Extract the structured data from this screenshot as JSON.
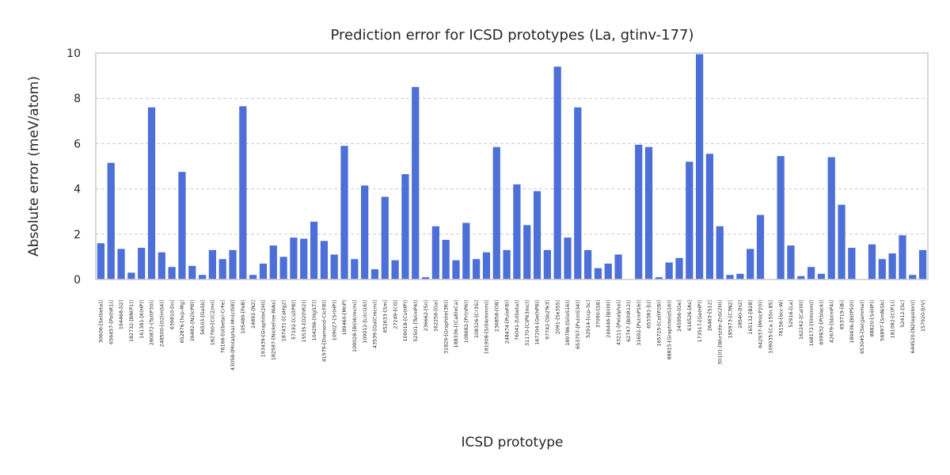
{
  "chart_data": {
    "type": "bar",
    "title": "Prediction error for ICSD prototypes (La, gtinv-177)",
    "xlabel": "ICSD prototype",
    "ylabel": "Absolute error (meV/atom)",
    "ylim": [
      0,
      10
    ],
    "yticks": [
      0,
      2,
      4,
      6,
      8,
      10
    ],
    "grid": "y-dashed",
    "color": "#4c6fd8",
    "categories": [
      "30606-[Se(beta)]",
      "656457-[Po(hR1)]",
      "194468-[I2]",
      "182732-[BN(P1)]",
      "161381-[K(HP)]",
      "280872-[Ta(tP30)]",
      "248500-[O2(mS4)]",
      "639810-[In]",
      "652876-[hcp-Mg]",
      "26482-[N2(cP8)]",
      "56503-[GaSb]",
      "182760-[C(C2/m)]",
      "76166-[U(beta)-CrFe]",
      "43058-[Mn(alpha)-Mn(cI58)]",
      "105489-[FeB]",
      "24892-[N2]",
      "193439-[Graphite(2H)]",
      "182587-[Nickeline-NiAs]",
      "187431-[CaHg2]",
      "57192-[Cs(tP8)]",
      "15535-[O2(hR2)]",
      "104296-[Hg(LT)]",
      "41979-[Diamond-C(cF8)]",
      "109027-[Sr(HP)]",
      "189460-[MnP]",
      "109028-[Bi(I4/mcm)]",
      "109012-[Li(cI16)]",
      "43539-[Ga(Cmcm)]",
      "652633-[Sm]",
      "27249-[CO]",
      "109018-[Cs(HP)]",
      "52501-[Te(mP4)]",
      "236662-[Sn]",
      "162256-[Ga]",
      "31829-[Graphite(3R)]",
      "188336-[(Ca8)xCa]",
      "108682-[Pr(nP6)]",
      "108326-[Cr3Si]",
      "181908-[Si(I4/mmm)]",
      "236858-[O8]",
      "248474-[Pu(oF8)]",
      "76041-[U(beta)]",
      "31170-[C(P63mc)]",
      "167204-[Ge(hP8)]",
      "97742-[Sb2Te3]",
      "2091-[Se3S5]",
      "189786-[Si(oS16)]",
      "653797-[Pu(mS34)]",
      "52914-[ccp-Sc]",
      "37090-[S8]",
      "246446-[Bi(III)]",
      "43211-[Po(alpha)]",
      "62747-[B(hR12)]",
      "31692-[Pu(mP16)]",
      "653381-[U]",
      "165725-[Co(tP28)]",
      "88815-[Graphite(oS16)]",
      "245956-[Ge]",
      "616526-[As]",
      "173517-[Ge(HP)]",
      "26463-[S12]",
      "30101-[Wurtzite-ZnS(2H)]",
      "185973-[C3N2]",
      "28540-[H2]",
      "165132-[B28]",
      "642937-[Mn(cP20)]",
      "109035-[Ca.15Sn.85]",
      "76156-[bcc-W]",
      "52916-[La]",
      "162242-[Ca(III)]",
      "168172-[I(Immm)]",
      "609832-[P(black)]",
      "42679-[Sb(mP4)]",
      "653719-[Bi]",
      "189436-[B(tP50)]",
      "653045-[Se(gamma)]",
      "88820-[Si(HP)]",
      "56897-[SmNiSb]",
      "181082-[C(P1)]",
      "52412-[Sc]",
      "644520-[N2(epsilon)]",
      "157920-[IrV]"
    ],
    "values": [
      1.6,
      5.15,
      1.35,
      0.3,
      1.4,
      7.6,
      1.2,
      0.55,
      4.75,
      0.6,
      0.2,
      1.3,
      0.9,
      1.3,
      7.65,
      0.2,
      0.7,
      1.5,
      1.0,
      1.85,
      1.8,
      2.55,
      1.7,
      1.1,
      5.9,
      0.9,
      4.15,
      0.45,
      3.65,
      0.85,
      4.65,
      8.5,
      0.1,
      2.35,
      1.75,
      0.85,
      2.5,
      0.9,
      1.2,
      5.85,
      1.3,
      4.2,
      2.4,
      3.9,
      1.3,
      9.4,
      1.85,
      7.6,
      1.3,
      0.5,
      0.7,
      1.1,
      0.0,
      5.95,
      5.85,
      0.1,
      0.75,
      0.95,
      5.2,
      9.95,
      5.55,
      2.35,
      0.2,
      0.25,
      1.35,
      2.85,
      0.0,
      5.45,
      1.5,
      0.15,
      0.55,
      0.25,
      5.4,
      3.3,
      1.4,
      0.0,
      1.55,
      0.9,
      1.15,
      1.95,
      0.2,
      1.3
    ]
  }
}
